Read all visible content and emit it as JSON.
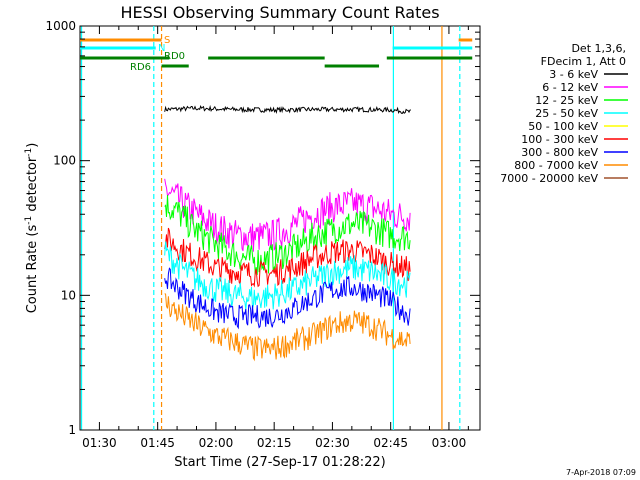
{
  "chart_data": {
    "type": "line",
    "title": "HESSI Observing Summary Count Rates",
    "xlabel": "Start Time (27-Sep-17 01:28:22)",
    "ylabel": "Count Rate (s",
    "ylabel_exp": "-1",
    "ylabel_tail": " detector",
    "ylabel_exp2": "-1",
    "ylabel_end": ")",
    "yscale": "log",
    "xlim": [
      85.0,
      188.0
    ],
    "ylim": [
      1,
      1000
    ],
    "xticks": [
      {
        "x": 90,
        "label": "01:30"
      },
      {
        "x": 105,
        "label": "01:45"
      },
      {
        "x": 120,
        "label": "02:00"
      },
      {
        "x": 135,
        "label": "02:15"
      },
      {
        "x": 150,
        "label": "02:30"
      },
      {
        "x": 165,
        "label": "02:45"
      },
      {
        "x": 180,
        "label": "03:00"
      }
    ],
    "yticks": [
      {
        "y": 1,
        "label": "1"
      },
      {
        "y": 10,
        "label": "10"
      },
      {
        "y": 100,
        "label": "100"
      },
      {
        "y": 1000,
        "label": "1000"
      }
    ],
    "grid": false,
    "legend": {
      "placement": "right",
      "header": [
        "Det 1,3,6,",
        "FDecim 1, Att 0"
      ],
      "entries": [
        {
          "name": "3 - 6 keV",
          "color": "#000000"
        },
        {
          "name": "6 - 12 keV",
          "color": "#ff00ff"
        },
        {
          "name": "12 - 25 keV",
          "color": "#00ff00"
        },
        {
          "name": "25 - 50 keV",
          "color": "#00ffff"
        },
        {
          "name": "50 - 100 keV",
          "color": "#ffff00"
        },
        {
          "name": "100 - 300 keV",
          "color": "#ff0000"
        },
        {
          "name": "300 - 800 keV",
          "color": "#0000ff"
        },
        {
          "name": "800 - 7000 keV",
          "color": "#ff8c00"
        },
        {
          "name": "7000 - 20000 keV",
          "color": "#a0522d"
        }
      ]
    },
    "series": [
      {
        "name": "3 - 6 keV",
        "color": "#000000",
        "x": [
          106.8,
          115,
          125,
          135,
          145,
          155,
          165,
          170.2
        ],
        "y": [
          240,
          245,
          240,
          238,
          240,
          240,
          238,
          230
        ]
      },
      {
        "name": "6 - 12 keV",
        "color": "#ff00ff",
        "x": [
          106.8,
          110,
          115,
          120,
          125,
          130,
          135,
          140,
          145,
          150,
          155,
          160,
          165,
          170
        ],
        "y": [
          62,
          52,
          40,
          32,
          28,
          27,
          28,
          33,
          40,
          45,
          48,
          45,
          40,
          38
        ]
      },
      {
        "name": "12 - 25 keV",
        "color": "#00ff00",
        "x": [
          106.8,
          110,
          115,
          120,
          125,
          130,
          135,
          140,
          145,
          150,
          155,
          160,
          165,
          170
        ],
        "y": [
          48,
          42,
          30,
          24,
          20,
          18,
          19,
          22,
          27,
          31,
          34,
          32,
          28,
          27
        ]
      },
      {
        "name": "100 - 300 keV",
        "color": "#ff0000",
        "x": [
          106.8,
          110,
          115,
          120,
          125,
          130,
          135,
          140,
          145,
          150,
          155,
          160,
          165,
          170
        ],
        "y": [
          27,
          23,
          19,
          16,
          15,
          14.5,
          14.5,
          16,
          19,
          21,
          21.5,
          20,
          17,
          15.5
        ]
      },
      {
        "name": "25 - 50 keV",
        "color": "#00ffff",
        "x": [
          106.8,
          110,
          115,
          120,
          125,
          130,
          135,
          140,
          145,
          150,
          155,
          160,
          165,
          170
        ],
        "y": [
          21,
          17,
          13,
          11,
          10,
          9.5,
          10,
          11,
          13,
          15,
          16,
          15,
          13,
          12
        ]
      },
      {
        "name": "300 - 800 keV",
        "color": "#0000ff",
        "x": [
          106.8,
          110,
          115,
          120,
          125,
          130,
          135,
          140,
          145,
          150,
          155,
          160,
          165,
          170
        ],
        "y": [
          14,
          11.5,
          9,
          7.5,
          7,
          7,
          7,
          8,
          9.5,
          11,
          11.5,
          10.5,
          9,
          7
        ]
      },
      {
        "name": "800 - 7000 keV",
        "color": "#ff8c00",
        "x": [
          106.8,
          110,
          115,
          120,
          125,
          130,
          135,
          140,
          145,
          150,
          155,
          160,
          165,
          170
        ],
        "y": [
          9,
          7.5,
          6,
          5,
          4.5,
          4,
          4,
          4.5,
          5,
          6,
          6.5,
          6,
          5,
          4.5
        ]
      }
    ],
    "state_bars": [
      {
        "label": "S",
        "label_color": "#ff8c00",
        "color": "#ff8c00",
        "segments": [
          [
            85,
            106
          ],
          [
            182.5,
            186
          ]
        ]
      },
      {
        "label": "N",
        "label_color": "#00ffff",
        "color": "#00ffff",
        "segments": [
          [
            85,
            104.5
          ],
          [
            165.5,
            186
          ]
        ]
      },
      {
        "label": "RD0",
        "label_color": "#008000",
        "color": "#008000",
        "segments": [
          [
            85,
            108
          ],
          [
            118,
            148
          ],
          [
            164,
            186
          ]
        ]
      },
      {
        "label": "RD6",
        "label_color": "#008000",
        "color": "#008000",
        "segments": [
          [
            106,
            113
          ],
          [
            148,
            162
          ]
        ]
      }
    ],
    "vertical_lines": [
      {
        "x": 85.4,
        "color": "#00ffff",
        "style": "solid"
      },
      {
        "x": 104.0,
        "color": "#00ffff",
        "style": "dashed"
      },
      {
        "x": 106.0,
        "color": "#ff8c00",
        "style": "dashed"
      },
      {
        "x": 165.7,
        "color": "#00ffff",
        "style": "solid"
      },
      {
        "x": 178.2,
        "color": "#ff8c00",
        "style": "solid"
      },
      {
        "x": 182.8,
        "color": "#00ffff",
        "style": "dashed"
      }
    ]
  },
  "footer": {
    "date": "7-Apr-2018 07:09"
  }
}
